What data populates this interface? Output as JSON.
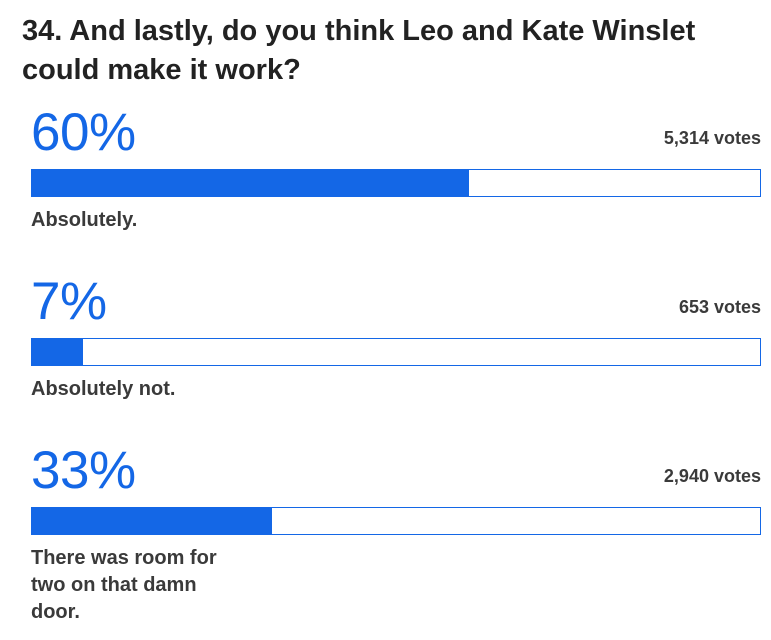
{
  "question": {
    "title": "34. And lastly, do you think Leo and Kate Winslet could make it work?"
  },
  "results": [
    {
      "percent_label": "60%",
      "votes_label": "5,314 votes",
      "answer": "Absolutely.",
      "fill_fraction": 0.6
    },
    {
      "percent_label": "7%",
      "votes_label": "653 votes",
      "answer": "Absolutely not.",
      "fill_fraction": 0.07
    },
    {
      "percent_label": "33%",
      "votes_label": "2,940 votes",
      "answer": "There was room for two on that damn door.",
      "fill_fraction": 0.33
    }
  ],
  "colors": {
    "accent": "#1467e6",
    "text": "#222222",
    "secondary_text": "#3a3a3a"
  }
}
